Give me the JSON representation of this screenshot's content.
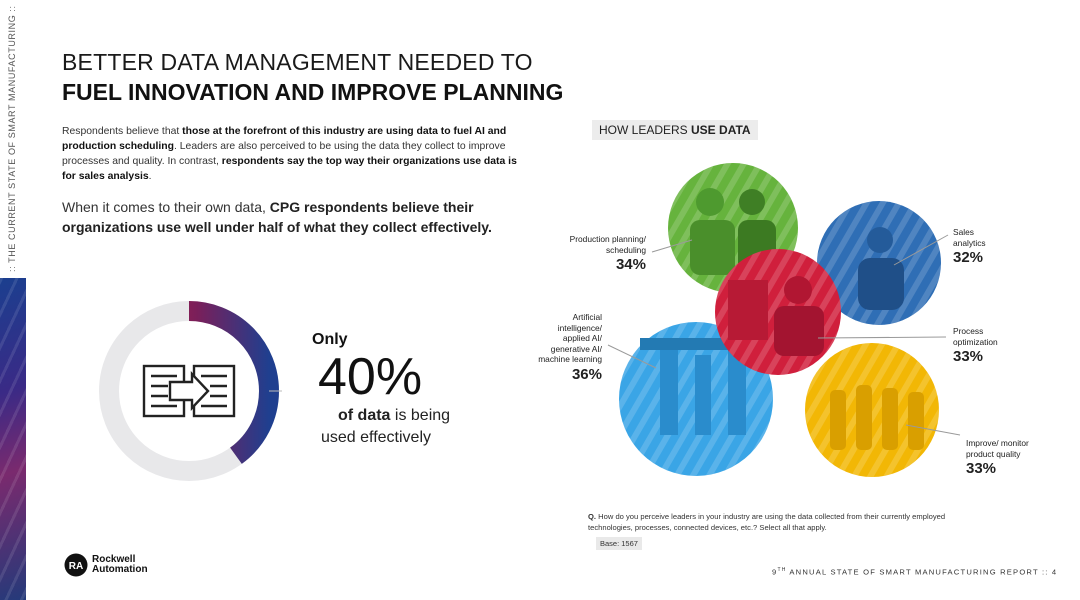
{
  "side": {
    "text": ":: THE CURRENT STATE OF SMART MANUFACTURING ::"
  },
  "header": {
    "title_line1": "BETTER DATA MANAGEMENT NEEDED TO",
    "title_line2": "FUEL INNOVATION AND IMPROVE PLANNING"
  },
  "intro": {
    "p1": "Respondents believe that ",
    "p2": "those at the forefront of this industry are using data to fuel AI and production scheduling",
    "p3": ". Leaders are also perceived to be using the data they collect to improve processes and quality. In contrast, ",
    "p4": "respondents say the top way their organizations use data is for sales analysis",
    "p5": "."
  },
  "callout": {
    "p1": "When it comes to their own data, ",
    "p2": "CPG respondents believe their organizations use well under half of what they collect effectively."
  },
  "stat": {
    "only": "Only",
    "value": "40%",
    "fraction": 0.4,
    "ofdata_bold": "of data",
    "ofdata_rest": " is being",
    "used": "used effectively",
    "icon": "data-transfer-icon"
  },
  "chart": {
    "title_plain": "HOW LEADERS ",
    "title_bold": "USE DATA",
    "items": [
      {
        "label": "Production planning/\nscheduling",
        "value": "34%",
        "color": "#66b33d",
        "image": "workers-photo"
      },
      {
        "label": "Sales\nanalytics",
        "value": "32%",
        "color": "#2f6eb5",
        "image": "analyst-photo"
      },
      {
        "label": "Process\noptimization",
        "value": "33%",
        "color": "#d01f3c",
        "image": "factory-photo"
      },
      {
        "label": "Artificial\nintelligence/\napplied AI/\ngenerative AI/\nmachine learning",
        "value": "36%",
        "color": "#3aa5e6",
        "image": "robotics-photo"
      },
      {
        "label": "Improve/ monitor\nproduct quality",
        "value": "33%",
        "color": "#f2b705",
        "image": "bottles-photo"
      }
    ]
  },
  "chart_data": {
    "type": "bubble",
    "title": "HOW LEADERS USE DATA",
    "categories": [
      "Production planning/scheduling",
      "Sales analytics",
      "Process optimization",
      "Artificial intelligence/applied AI/generative AI/machine learning",
      "Improve/ monitor product quality"
    ],
    "values": [
      34,
      32,
      33,
      36,
      33
    ]
  },
  "question": {
    "q": "Q.",
    "text": " How do you perceive leaders in your industry are using the data collected from their currently employed technologies, processes, connected devices, etc.? Select all that apply.",
    "base": "Base: 1567"
  },
  "logo": {
    "line1": "Rockwell",
    "line2": "Automation",
    "mark": "RA"
  },
  "footer": {
    "prefix": "9",
    "sup": "TH",
    "text": " ANNUAL STATE OF SMART MANUFACTURING REPORT :: 4"
  }
}
